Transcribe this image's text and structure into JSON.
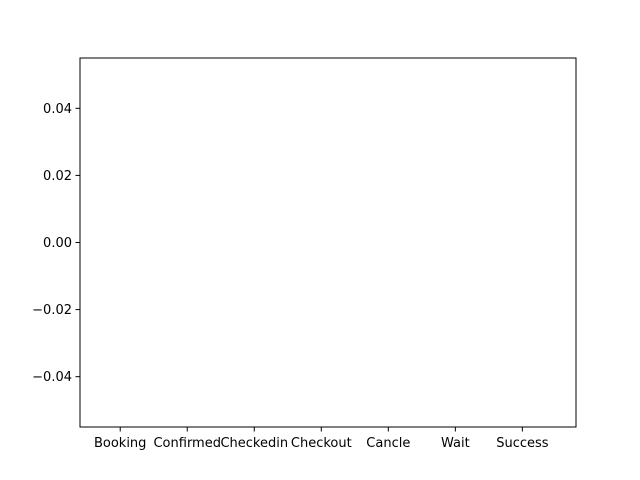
{
  "chart_data": {
    "type": "bar",
    "title": "",
    "xlabel": "",
    "ylabel": "",
    "categories": [
      "Booking",
      "Confirmed",
      "Checkedin",
      "Checkout",
      "Cancle",
      "Wait",
      "Success"
    ],
    "values": [
      0,
      0,
      0,
      0,
      0,
      0,
      0
    ],
    "ylim": [
      -0.055,
      0.055
    ],
    "yticks": [
      -0.04,
      -0.02,
      0.0,
      0.02,
      0.04
    ],
    "ytick_labels": [
      "−0.04",
      "−0.02",
      "0.00",
      "0.02",
      "0.04"
    ],
    "grid": false,
    "legend": "none",
    "colors": {
      "axis": "#000000",
      "background": "#ffffff",
      "bar": "#1f77b4"
    }
  }
}
